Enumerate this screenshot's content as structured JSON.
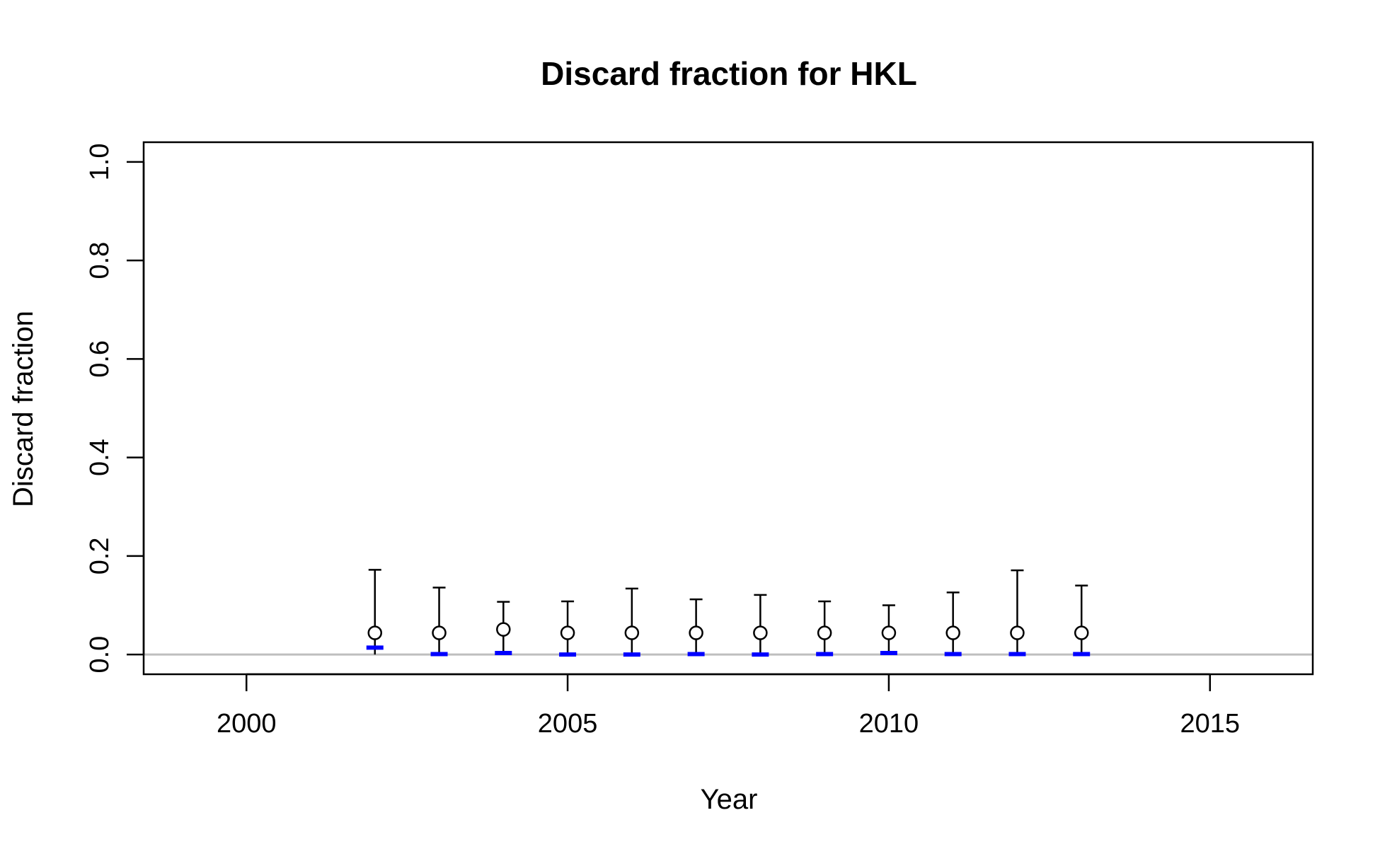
{
  "chart_data": {
    "type": "scatter",
    "title": "Discard fraction for HKL",
    "xlabel": "Year",
    "ylabel": "Discard fraction",
    "xlim": [
      1998.4,
      2016.6
    ],
    "ylim": [
      -0.04,
      1.04
    ],
    "x_ticks": [
      2000,
      2005,
      2010,
      2015
    ],
    "y_ticks": [
      0.0,
      0.2,
      0.4,
      0.6,
      0.8,
      1.0
    ],
    "y_tick_labels": [
      "0.0",
      "0.2",
      "0.4",
      "0.6",
      "0.8",
      "1.0"
    ],
    "reference_line_y": 0.0,
    "grid": false,
    "colors": {
      "observed": "#000000",
      "expected": "#0000ff",
      "reference": "#bebebe"
    },
    "observations": [
      {
        "year": 2002,
        "value": 0.044,
        "upper": 0.172,
        "expected": 0.014
      },
      {
        "year": 2003,
        "value": 0.044,
        "upper": 0.136,
        "expected": 0.001
      },
      {
        "year": 2004,
        "value": 0.051,
        "upper": 0.107,
        "expected": 0.003
      },
      {
        "year": 2005,
        "value": 0.044,
        "upper": 0.108,
        "expected": 0.0
      },
      {
        "year": 2006,
        "value": 0.044,
        "upper": 0.134,
        "expected": 0.0
      },
      {
        "year": 2007,
        "value": 0.044,
        "upper": 0.112,
        "expected": 0.001
      },
      {
        "year": 2008,
        "value": 0.044,
        "upper": 0.121,
        "expected": 0.0
      },
      {
        "year": 2009,
        "value": 0.044,
        "upper": 0.108,
        "expected": 0.001
      },
      {
        "year": 2010,
        "value": 0.044,
        "upper": 0.1,
        "expected": 0.003
      },
      {
        "year": 2011,
        "value": 0.044,
        "upper": 0.126,
        "expected": 0.001
      },
      {
        "year": 2012,
        "value": 0.044,
        "upper": 0.171,
        "expected": 0.001
      },
      {
        "year": 2013,
        "value": 0.044,
        "upper": 0.14,
        "expected": 0.001
      }
    ]
  }
}
